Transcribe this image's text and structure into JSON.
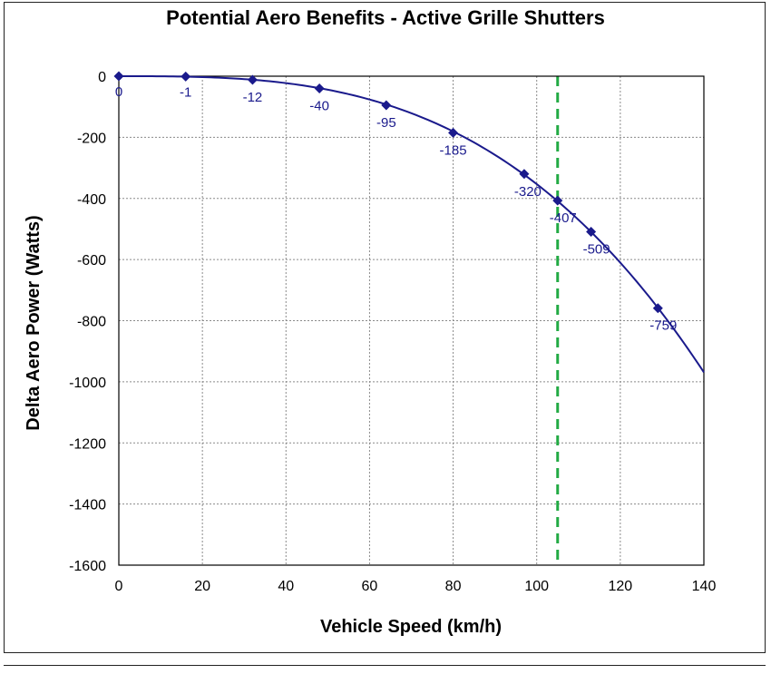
{
  "chart_data": {
    "type": "line",
    "title": "Potential Aero Benefits - Active Grille Shutters",
    "xlabel": "Vehicle Speed (km/h)",
    "ylabel": "Delta Aero Power (Watts)",
    "xlim": [
      0,
      140
    ],
    "ylim": [
      -1600,
      0
    ],
    "x_ticks": [
      "0",
      "20",
      "40",
      "60",
      "80",
      "100",
      "120",
      "140"
    ],
    "y_ticks": [
      "0",
      "-200",
      "-400",
      "-600",
      "-800",
      "-1000",
      "-1200",
      "-1400",
      "-1600"
    ],
    "grid": true,
    "series": [
      {
        "color": "#1a1a8c",
        "marker": "diamond",
        "points": [
          {
            "x": 0,
            "y": 0,
            "label": "0"
          },
          {
            "x": 16,
            "y": -1,
            "label": "-1"
          },
          {
            "x": 32,
            "y": -12,
            "label": "-12"
          },
          {
            "x": 48,
            "y": -40,
            "label": "-40"
          },
          {
            "x": 64,
            "y": -95,
            "label": "-95"
          },
          {
            "x": 80,
            "y": -185,
            "label": "-185"
          },
          {
            "x": 97,
            "y": -320,
            "label": "-320"
          },
          {
            "x": 105,
            "y": -407,
            "label": "-407"
          },
          {
            "x": 113,
            "y": -509,
            "label": "-509"
          },
          {
            "x": 129,
            "y": -759,
            "label": "-759"
          }
        ]
      }
    ],
    "reference_line": {
      "x": 105,
      "color": "#22aa44",
      "style": "dashed"
    }
  }
}
